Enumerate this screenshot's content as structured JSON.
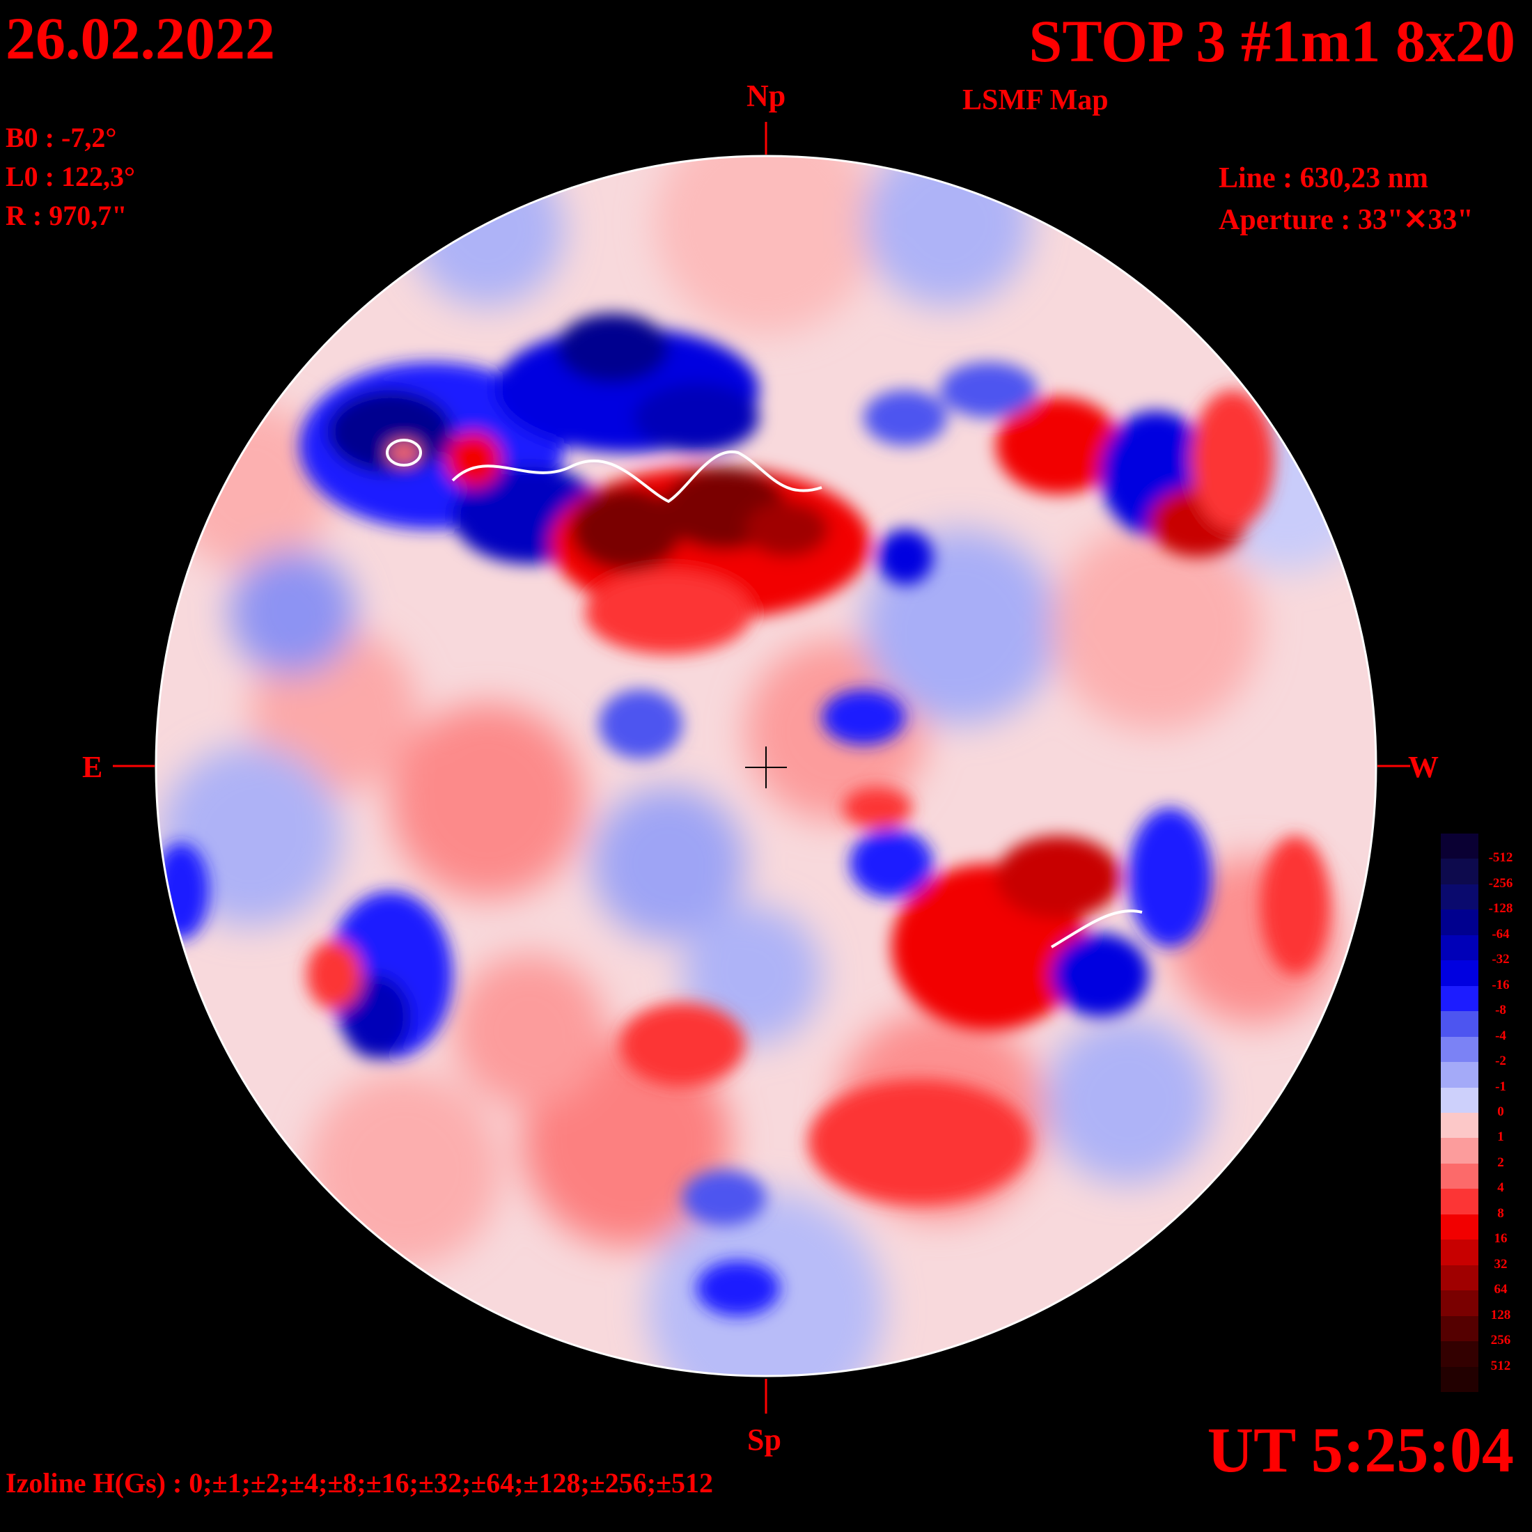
{
  "header": {
    "date": "26.02.2022",
    "title": "STOP 3 #1m1 8x20",
    "subtitle": "LSMF  Map"
  },
  "params": {
    "b0": "B0 : -7,2°",
    "l0": "L0 : 122,3°",
    "radius": "R  : 970,7\"",
    "line": "Line :  630,23 nm",
    "aperture": "Aperture : 33\"✕33\""
  },
  "orientation": {
    "north": "Np",
    "south": "Sp",
    "east": "E",
    "west": "W"
  },
  "time": "UT 5:25:04",
  "izoline": "Izoline H(Gs) : 0;±1;±2;±4;±8;±16;±32;±64;±128;±256;±512",
  "colorbar": {
    "levels": [
      {
        "label": "-512",
        "color": "#0a0033"
      },
      {
        "label": "-256",
        "color": "#0d0a4d"
      },
      {
        "label": "-128",
        "color": "#0a0a6e"
      },
      {
        "label": "-64",
        "color": "#00008f"
      },
      {
        "label": "-32",
        "color": "#0000b8"
      },
      {
        "label": "-16",
        "color": "#0000e0"
      },
      {
        "label": "-8",
        "color": "#1c1cff"
      },
      {
        "label": "-4",
        "color": "#4d55f0"
      },
      {
        "label": "-2",
        "color": "#7b82f5"
      },
      {
        "label": "-1",
        "color": "#a4aaf8"
      },
      {
        "label": "0",
        "color": "#cdd0fb"
      },
      {
        "label": "1",
        "color": "#fcc8c8"
      },
      {
        "label": "2",
        "color": "#fc9c9c"
      },
      {
        "label": "4",
        "color": "#fc6a6a"
      },
      {
        "label": "8",
        "color": "#fc3535"
      },
      {
        "label": "16",
        "color": "#f20000"
      },
      {
        "label": "32",
        "color": "#c80000"
      },
      {
        "label": "64",
        "color": "#a00000"
      },
      {
        "label": "128",
        "color": "#7a0000"
      },
      {
        "label": "256",
        "color": "#550000"
      },
      {
        "label": "512",
        "color": "#330000"
      }
    ],
    "end_color": "#220000"
  },
  "colors": {
    "text": "#ff0000",
    "background": "#000000",
    "zero_contour": "#ffffff"
  }
}
